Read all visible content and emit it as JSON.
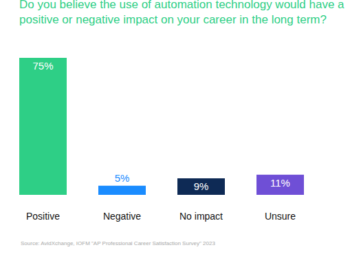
{
  "chart_data": {
    "type": "bar",
    "title": "Do you believe the use of automation technology would have a positive or negative impact on your career in the long term?",
    "categories": [
      "Positive",
      "Negative",
      "No impact",
      "Unsure"
    ],
    "values": [
      75,
      5,
      9,
      11
    ],
    "value_labels": [
      "75%",
      "5%",
      "9%",
      "11%"
    ],
    "colors": [
      "#2ecf86",
      "#1a8cff",
      "#0e2a55",
      "#6f4fd6"
    ],
    "ylim": [
      0,
      75
    ],
    "data_labels": true,
    "tick_labels": "x",
    "grid": false,
    "annotations": [
      "Source: AvidXchange, IOFM \"AP Professional Career Satisfaction Survey\" 2023"
    ]
  }
}
